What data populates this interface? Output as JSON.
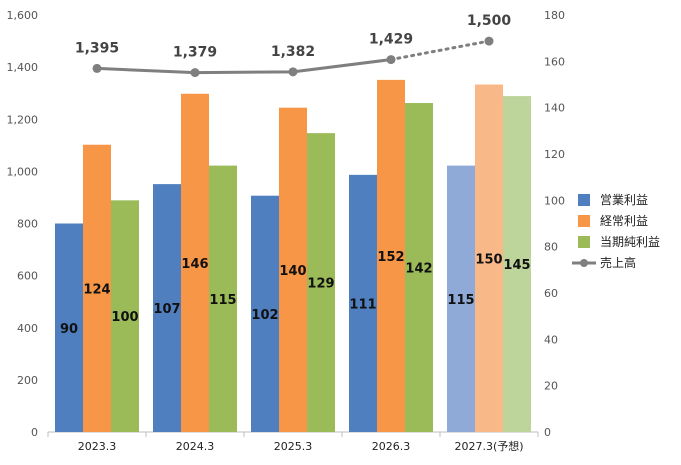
{
  "chart_data": {
    "type": "bar",
    "categories": [
      "2023.3",
      "2024.3",
      "2025.3",
      "2026.3",
      "2027.3(予想)"
    ],
    "forecast_index": 4,
    "series": [
      {
        "name": "営業利益",
        "type": "bar",
        "axis": "right",
        "color": "#4F7FBF",
        "forecast_color": "#8FAAD6",
        "values": [
          90,
          107,
          102,
          111,
          115
        ]
      },
      {
        "name": "経常利益",
        "type": "bar",
        "axis": "right",
        "color": "#F79646",
        "forecast_color": "#F8B887",
        "values": [
          124,
          146,
          140,
          152,
          150
        ]
      },
      {
        "name": "当期純利益",
        "type": "bar",
        "axis": "right",
        "color": "#9BBB59",
        "forecast_color": "#BDD49A",
        "values": [
          100,
          115,
          129,
          142,
          145
        ]
      },
      {
        "name": "売上高",
        "type": "line",
        "axis": "left",
        "color": "#7F7F7F",
        "values": [
          1395,
          1379,
          1382,
          1429,
          1500
        ]
      }
    ],
    "bar_labels": [
      "90",
      "124",
      "100",
      "107",
      "146",
      "115",
      "102",
      "140",
      "129",
      "111",
      "152",
      "142",
      "115",
      "150",
      "145"
    ],
    "line_labels": [
      "1,395",
      "1,379",
      "1,382",
      "1,429",
      "1,500"
    ],
    "y_left": {
      "min": 0,
      "max": 1600,
      "step": 200,
      "ticks": [
        "0",
        "200",
        "400",
        "600",
        "800",
        "1,000",
        "1,200",
        "1,400",
        "1,600"
      ]
    },
    "y_right": {
      "min": 0,
      "max": 180,
      "step": 20,
      "ticks": [
        "0",
        "20",
        "40",
        "60",
        "80",
        "100",
        "120",
        "140",
        "160",
        "180"
      ]
    },
    "legend_position": "right",
    "grid": false
  }
}
